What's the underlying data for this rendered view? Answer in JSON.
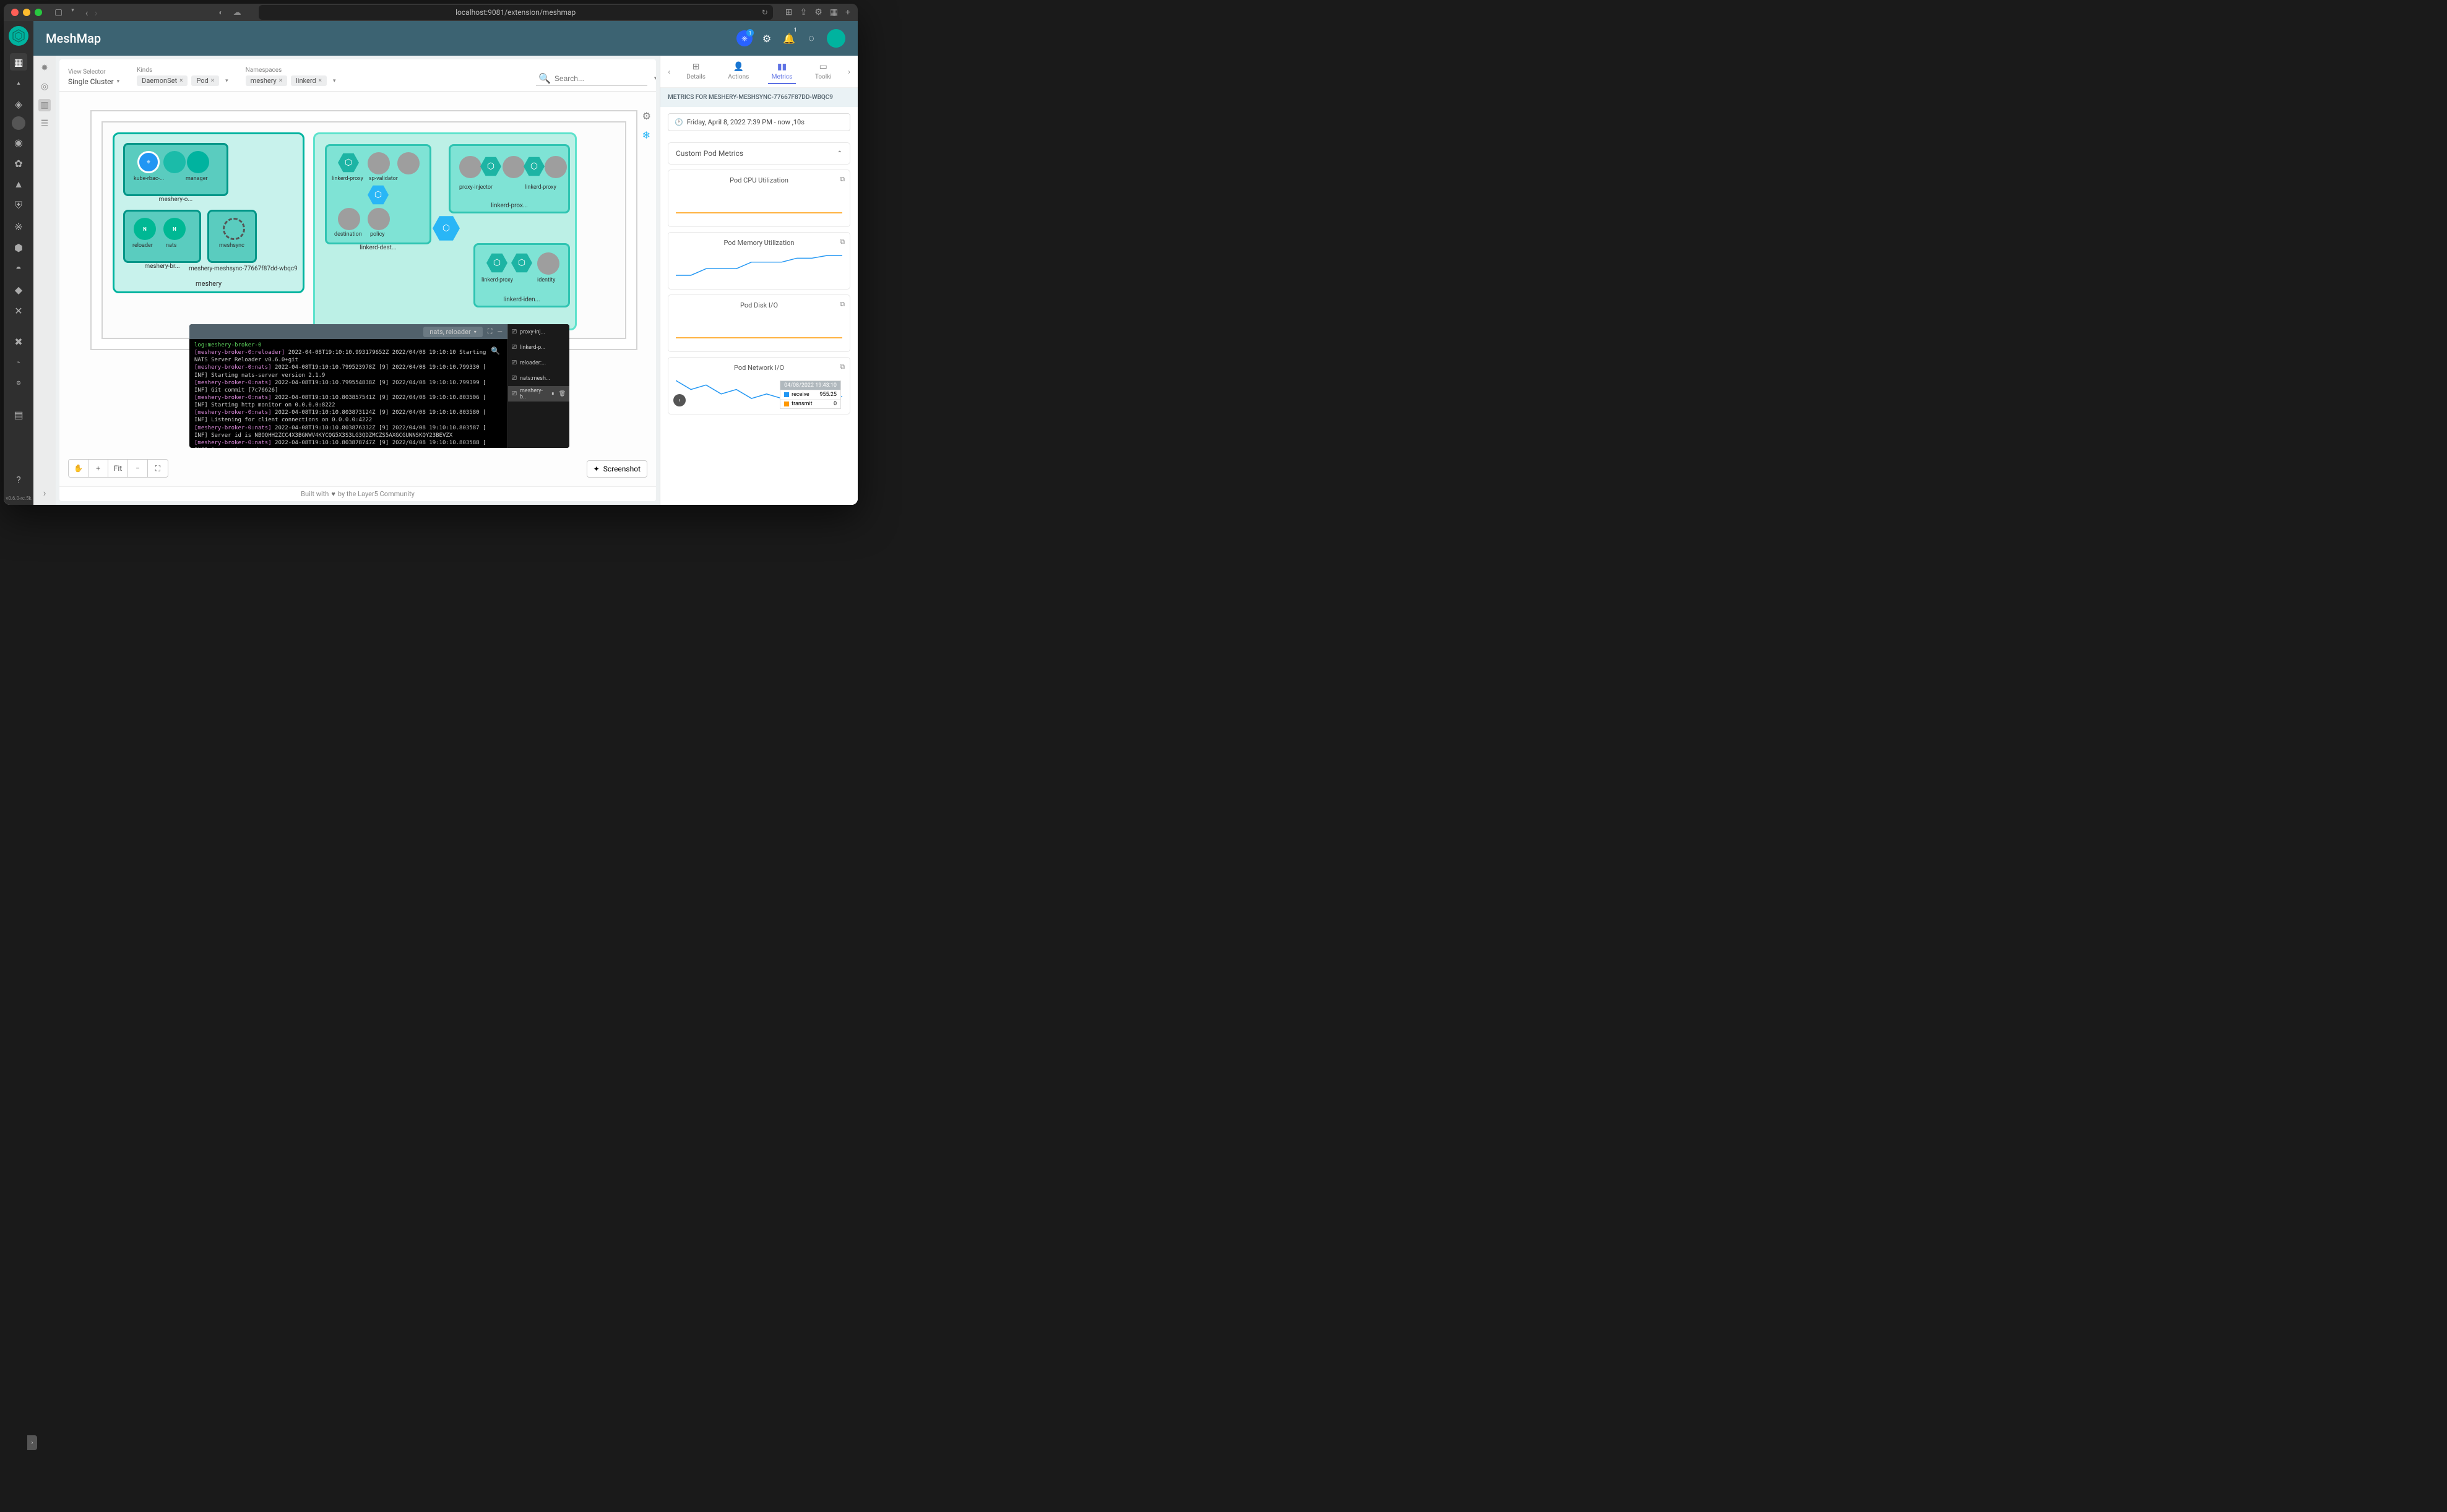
{
  "browser": {
    "url": "localhost:9081/extension/meshmap"
  },
  "header": {
    "title": "MeshMap",
    "k8s_badge": "1",
    "bell_badge": "1"
  },
  "vrail": {
    "version": "v0.6.0-rc.5k"
  },
  "filters": {
    "view_selector_label": "View Selector",
    "view_selector_value": "Single Cluster",
    "kinds_label": "Kinds",
    "kinds": [
      "DaemonSet",
      "Pod"
    ],
    "ns_label": "Namespaces",
    "namespaces": [
      "meshery",
      "linkerd"
    ],
    "search_placeholder": "Search..."
  },
  "canvas": {
    "meshery_ns": "meshery",
    "linkerd_ns_implied": true,
    "pods": {
      "meshery_operator": {
        "label": "meshery-o...",
        "kube_rbac": "kube-rbac-...",
        "manager": "manager"
      },
      "meshery_broker": {
        "label": "meshery-br...",
        "reloader": "reloader",
        "nats": "nats"
      },
      "meshsync": {
        "label": "meshery-meshsync-77667f87dd-wbqc9",
        "meshsync": "meshsync"
      },
      "linkerd_dest": {
        "label": "linkerd-dest...",
        "linkerd_proxy": "linkerd-proxy",
        "sp_validator": "sp-validator",
        "destination": "destination",
        "policy": "policy"
      },
      "linkerd_prox": {
        "label": "linkerd-prox...",
        "proxy_injector": "proxy-injector",
        "linkerd_proxy2": "linkerd-proxy"
      },
      "linkerd_iden": {
        "label": "linkerd-iden...",
        "linkerd_proxy3": "linkerd-proxy",
        "identity": "identity"
      }
    },
    "controls": {
      "pan": "✋",
      "zoom_in": "+",
      "fit": "Fit",
      "zoom_out": "−",
      "fullscreen": "⛶"
    },
    "screenshot": "Screenshot"
  },
  "terminal": {
    "selector": "nats, reloader",
    "side_tabs": [
      "proxy-inj...",
      "linkerd-p...",
      "reloader:...",
      "nats:mesh...",
      "meshery-b.."
    ],
    "active_tab": 4,
    "lines": [
      {
        "pre": "log:meshery-broker-0",
        "cls": "grn",
        "rest": ""
      },
      {
        "pre": "[meshery-broker-0:reloader]",
        "cls": "pur",
        "rest": " 2022-04-08T19:10:10.993179652Z 2022/04/08 19:10:10 Starting"
      },
      {
        "pre": "",
        "cls": "wht",
        "rest": " NATS Server Reloader v0.6.0+git"
      },
      {
        "pre": "[meshery-broker-0:nats]",
        "cls": "pur",
        "rest": " 2022-04-08T19:10:10.799523978Z [9] 2022/04/08 19:10:10.799330 ["
      },
      {
        "pre": "",
        "cls": "wht",
        "rest": "INF] Starting nats-server version 2.1.9"
      },
      {
        "pre": "[meshery-broker-0:nats]",
        "cls": "pur",
        "rest": " 2022-04-08T19:10:10.799554838Z [9] 2022/04/08 19:10:10.799399 ["
      },
      {
        "pre": "",
        "cls": "wht",
        "rest": "INF] Git commit [7c76626]"
      },
      {
        "pre": "[meshery-broker-0:nats]",
        "cls": "pur",
        "rest": " 2022-04-08T19:10:10.803857541Z [9] 2022/04/08 19:10:10.803506 ["
      },
      {
        "pre": "",
        "cls": "wht",
        "rest": "INF] Starting http monitor on 0.0.0.0:8222"
      },
      {
        "pre": "[meshery-broker-0:nats]",
        "cls": "pur",
        "rest": " 2022-04-08T19:10:10.803873124Z [9] 2022/04/08 19:10:10.803580 ["
      },
      {
        "pre": "",
        "cls": "wht",
        "rest": "INF] Listening for client connections on 0.0.0.0:4222"
      },
      {
        "pre": "[meshery-broker-0:nats]",
        "cls": "pur",
        "rest": " 2022-04-08T19:10:10.803876332Z [9] 2022/04/08 19:10:10.803587 ["
      },
      {
        "pre": "",
        "cls": "wht",
        "rest": "INF] Server id is NBOQHH2ZCC4X3BGNWV4KYCQG5X3S3LG3QDZMCZS5AXGCGUNNSKQY23BEVZX"
      },
      {
        "pre": "[meshery-broker-0:nats]",
        "cls": "pur",
        "rest": " 2022-04-08T19:10:10.803878747Z [9] 2022/04/08 19:10:10.803588 ["
      },
      {
        "pre": "",
        "cls": "wht",
        "rest": "INF] Server is ready"
      },
      {
        "pre": "",
        "cls": "wht",
        "rest": "▯"
      }
    ]
  },
  "right_panel": {
    "tabs": [
      {
        "label": "Details",
        "icon": "⊞"
      },
      {
        "label": "Actions",
        "icon": "👤"
      },
      {
        "label": "Metrics",
        "icon": "▮▮",
        "active": true
      },
      {
        "label": "Toolki",
        "icon": "▭"
      }
    ],
    "title": "METRICS FOR MESHERY-MESHSYNC-77667F87DD-WBQC9",
    "time_range": "Friday, April 8, 2022 7:39 PM  -  now  ,10s",
    "accordion": "Custom Pod Metrics",
    "cards": [
      {
        "title": "Pod CPU Utilization",
        "type": "flat",
        "color": "#ff9800",
        "data": [
          1,
          1,
          1,
          1,
          1,
          1,
          1,
          1,
          1,
          1
        ]
      },
      {
        "title": "Pod Memory Utilization",
        "type": "step",
        "color": "#2196f3",
        "data": [
          2,
          2,
          2.5,
          2.5,
          2.5,
          3,
          3,
          3,
          3.3,
          3.3,
          3.5,
          3.5
        ]
      },
      {
        "title": "Pod Disk I/O",
        "type": "flat",
        "color": "#ff9800",
        "data": [
          1,
          1,
          1,
          1,
          1,
          1,
          1,
          1,
          1,
          1
        ]
      },
      {
        "title": "Pod Network I/O",
        "type": "line",
        "color": "#2196f3",
        "data": [
          4,
          3,
          3.5,
          2.5,
          3,
          2,
          2.5,
          2,
          2,
          1.8,
          2,
          2.2
        ],
        "legend_ts": "04/08/2022 19:43:10",
        "legend": [
          {
            "label": "receive",
            "color": "#2196f3",
            "val": "955.25"
          },
          {
            "label": "transmit",
            "color": "#ff9800",
            "val": "0"
          }
        ]
      }
    ]
  },
  "footer": {
    "text_left": "Built with",
    "text_right": "by the Layer5 Community"
  },
  "colors": {
    "brand_teal": "#00b39f",
    "header_bg": "#3c6372",
    "ns_teal": "#5de2cc",
    "pod_border": "#009688",
    "gray_node": "#9e9e9e",
    "metrics_accent": "#5e72e4"
  }
}
